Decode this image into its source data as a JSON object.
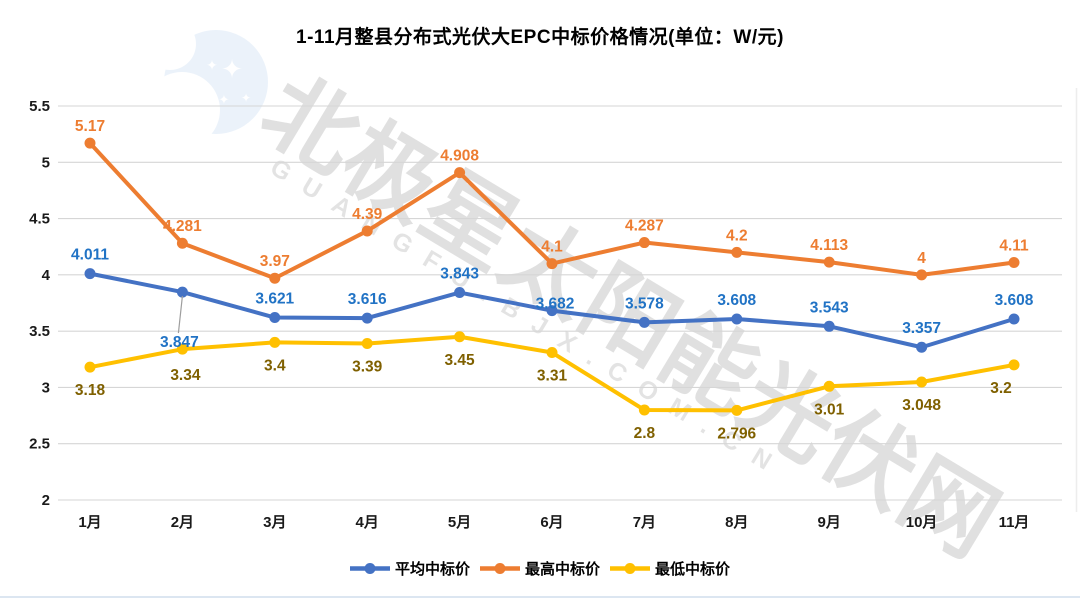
{
  "watermark": {
    "main": "北极星太阳能光伏网",
    "sub": "GUANGFU.BJX.COM.CN"
  },
  "chart_data": {
    "type": "line",
    "title": "1-11月整县分布式光伏大EPC中标价格情况(单位：W/元)",
    "categories": [
      "1月",
      "2月",
      "3月",
      "4月",
      "5月",
      "6月",
      "7月",
      "8月",
      "9月",
      "10月",
      "11月"
    ],
    "series": [
      {
        "name": "平均中标价",
        "key": "average",
        "color": "#4472C4",
        "label_color": "#2173C5",
        "values": [
          4.011,
          3.847,
          3.621,
          3.616,
          3.843,
          3.682,
          3.578,
          3.608,
          3.543,
          3.357,
          3.608
        ]
      },
      {
        "name": "最高中标价",
        "key": "highest",
        "color": "#ED7D31",
        "label_color": "#ED7D31",
        "values": [
          5.17,
          4.281,
          3.97,
          4.39,
          4.908,
          4.1,
          4.287,
          4.2,
          4.113,
          4,
          4.11
        ]
      },
      {
        "name": "最低中标价",
        "key": "lowest",
        "color": "#FFC000",
        "label_color": "#7F6000",
        "values": [
          3.18,
          3.34,
          3.4,
          3.39,
          3.45,
          3.31,
          2.8,
          2.796,
          3.01,
          3.048,
          3.2
        ]
      }
    ],
    "ylim": [
      2,
      5.5
    ],
    "ytick_step": 0.5,
    "yticks": [
      "5.5",
      "5",
      "4.5",
      "4",
      "3.5",
      "3",
      "2.5",
      "2"
    ],
    "xlabel": "",
    "ylabel": "",
    "grid": true,
    "legend_position": "bottom"
  },
  "colors": {
    "grid": "#D6D6D6",
    "axis_text": "#1a1a1a",
    "leader_line": "#9E9E9E",
    "plot_border": "#ededed",
    "background": "#FFFFFF",
    "logo_blue": "#dbe9f7"
  }
}
